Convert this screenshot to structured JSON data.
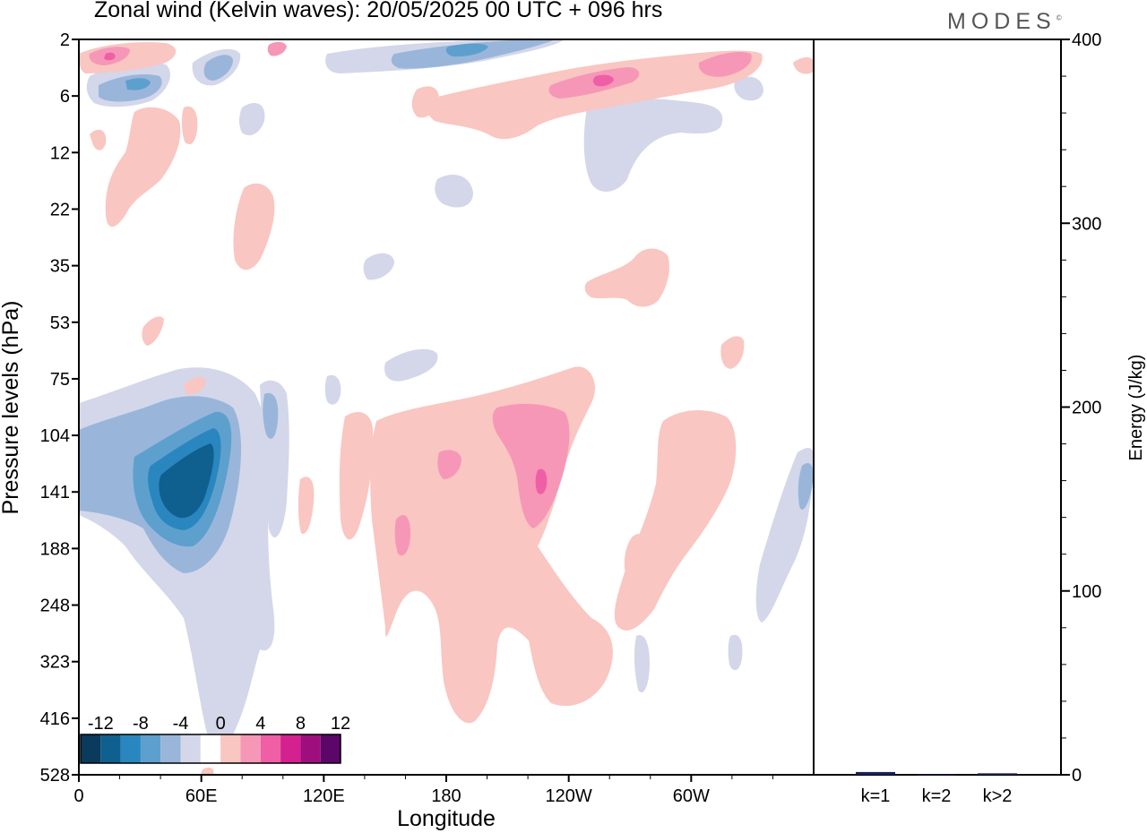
{
  "title": "Zonal wind (Kelvin waves):  20/05/2025  00 UTC  + 096 hrs",
  "logo": "MODES",
  "chart_data": [
    {
      "type": "heatmap",
      "title": "Zonal wind (Kelvin waves):  20/05/2025  00 UTC  + 096 hrs",
      "xlabel": "Longitude",
      "ylabel": "Pressure levels (hPa)",
      "x_ticks": [
        "0",
        "60E",
        "120E",
        "180",
        "120W",
        "60W"
      ],
      "y_ticks": [
        "2",
        "6",
        "12",
        "22",
        "35",
        "53",
        "75",
        "104",
        "141",
        "188",
        "248",
        "323",
        "416",
        "528"
      ],
      "colorbar": {
        "tick_labels": [
          "-12",
          "-8",
          "-4",
          "0",
          "4",
          "8",
          "12"
        ],
        "colors": [
          "#0a3a5c",
          "#0f5f8f",
          "#2a86bf",
          "#5da0ce",
          "#99b6da",
          "#d4d7ea",
          "#ffffff",
          "#f9c6c1",
          "#f697b8",
          "#ef5fa6",
          "#d3218f",
          "#9e0e7d",
          "#5b0668"
        ]
      },
      "features": [
        {
          "sign": "negative",
          "min_value": -12,
          "location": "45E-60E, 104-188 hPa"
        },
        {
          "sign": "positive",
          "max_value": 8,
          "location": "110W, 104-188 hPa"
        },
        {
          "sign": "positive",
          "max_value": 8,
          "location": "130W, 2-6 hPa"
        }
      ]
    },
    {
      "type": "bar",
      "categories": [
        "k=1",
        "k=2",
        "k>2"
      ],
      "values": [
        1.5,
        0.3,
        0.8
      ],
      "ylabel": "Energy (J/kg)",
      "ylim": [
        0,
        400
      ],
      "y_ticks": [
        "0",
        "100",
        "200",
        "300",
        "400"
      ],
      "bar_color": "#1a1f5c"
    }
  ]
}
